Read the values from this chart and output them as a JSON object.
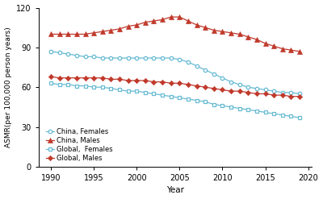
{
  "years": [
    1990,
    1991,
    1992,
    1993,
    1994,
    1995,
    1996,
    1997,
    1998,
    1999,
    2000,
    2001,
    2002,
    2003,
    2004,
    2005,
    2006,
    2007,
    2008,
    2009,
    2010,
    2011,
    2012,
    2013,
    2014,
    2015,
    2016,
    2017,
    2018,
    2019
  ],
  "china_females": [
    87,
    86,
    85,
    84,
    83,
    83,
    82,
    82,
    82,
    82,
    82,
    82,
    82,
    82,
    82,
    81,
    79,
    76,
    73,
    70,
    67,
    64,
    62,
    60,
    59,
    58,
    57,
    56,
    56,
    55
  ],
  "china_males": [
    100,
    100,
    100,
    100,
    100,
    101,
    102,
    103,
    104,
    106,
    107,
    109,
    110,
    111,
    113,
    113,
    110,
    107,
    105,
    103,
    102,
    101,
    100,
    98,
    96,
    93,
    91,
    89,
    88,
    87
  ],
  "global_females": [
    63,
    62,
    62,
    61,
    61,
    60,
    60,
    59,
    58,
    57,
    57,
    56,
    55,
    54,
    53,
    52,
    51,
    50,
    49,
    47,
    46,
    45,
    44,
    43,
    42,
    41,
    40,
    39,
    38,
    37
  ],
  "global_males": [
    68,
    67,
    67,
    67,
    67,
    67,
    67,
    66,
    66,
    65,
    65,
    65,
    64,
    64,
    63,
    63,
    62,
    61,
    60,
    59,
    58,
    57,
    57,
    56,
    55,
    55,
    54,
    54,
    53,
    53
  ],
  "cyan_color": "#67bbd4",
  "red_color": "#c0392b",
  "ylabel": "ASMR(per 100,000 person years)",
  "xlabel": "Year",
  "ylim": [
    0,
    120
  ],
  "yticks": [
    0,
    30,
    60,
    90,
    120
  ],
  "xticks": [
    1990,
    1995,
    2000,
    2005,
    2010,
    2015,
    2020
  ],
  "legend_labels": [
    "China, Females",
    "China, Males",
    "Global,  Females",
    "Global, Males"
  ],
  "background_color": "#ffffff",
  "figwidth": 4.0,
  "figheight": 2.47,
  "dpi": 100
}
